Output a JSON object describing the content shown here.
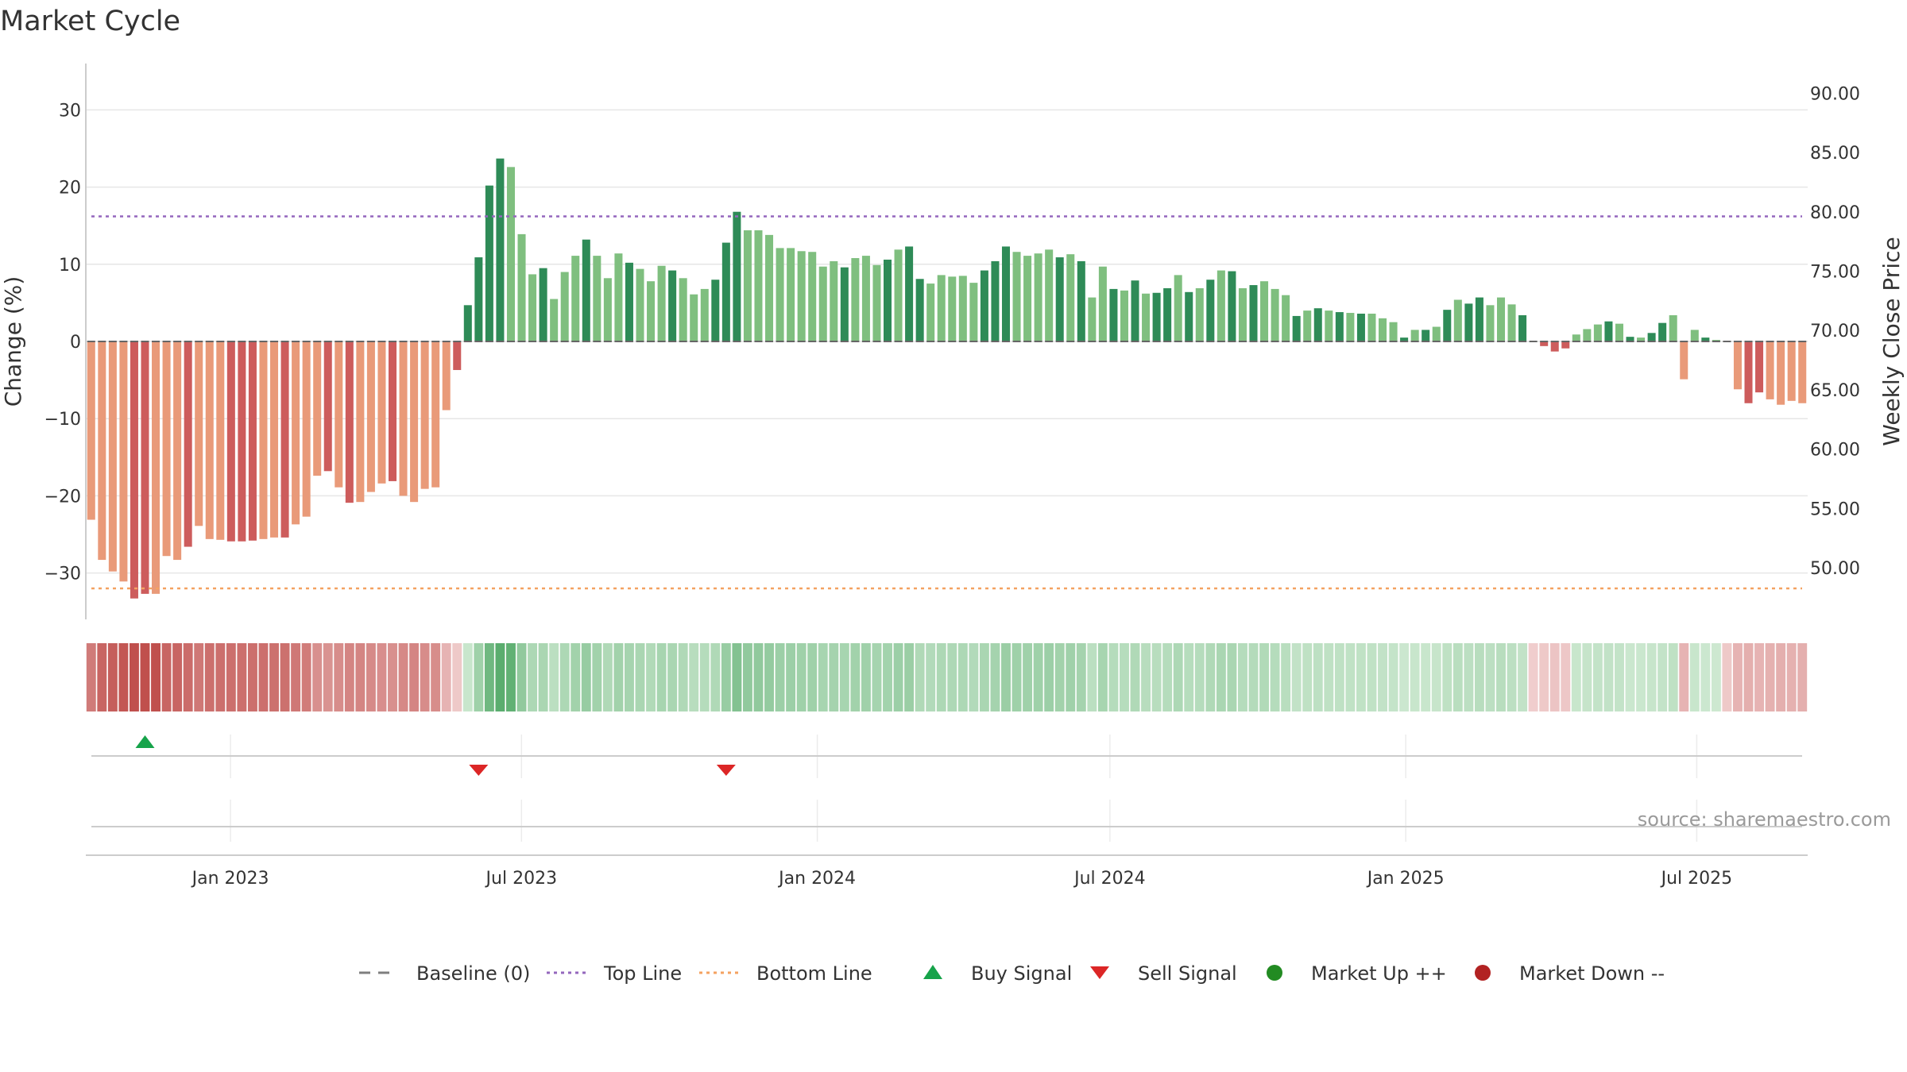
{
  "chart_data": {
    "type": "bar",
    "title": "Market Cycle",
    "ylabel_left": "Change (%)",
    "ylabel_right": "Weekly Close Price",
    "ylim_left": [
      -36,
      36
    ],
    "ylim_right": [
      45.65,
      92.5
    ],
    "yticks_left": [
      30,
      20,
      10,
      0,
      -10,
      -20,
      -30
    ],
    "ytick_labels_left": [
      "30",
      "20",
      "10",
      "0",
      "−10",
      "−20",
      "−30"
    ],
    "yticks_right": [
      90,
      85,
      80,
      75,
      70,
      65,
      60,
      55,
      50
    ],
    "ytick_labels_right": [
      "90.00",
      "85.00",
      "80.00",
      "75.00",
      "70.00",
      "65.00",
      "60.00",
      "55.00",
      "50.00"
    ],
    "x_range": [
      "2022-10-03",
      "2025-09-08"
    ],
    "x_ticks": [
      {
        "date": "2023-01-01",
        "label": "Jan 2023"
      },
      {
        "date": "2023-07-01",
        "label": "Jul 2023"
      },
      {
        "date": "2024-01-01",
        "label": "Jan 2024"
      },
      {
        "date": "2024-07-01",
        "label": "Jul 2024"
      },
      {
        "date": "2025-01-01",
        "label": "Jan 2025"
      },
      {
        "date": "2025-07-01",
        "label": "Jul 2025"
      }
    ],
    "first_week": "2022-10-03",
    "reference_lines": {
      "baseline": 0,
      "top_line": 16.2,
      "bottom_line": -32.0
    },
    "values": [
      -23.1,
      -28.3,
      -29.8,
      -31.1,
      -33.3,
      -32.7,
      -32.7,
      -27.8,
      -28.3,
      -26.6,
      -23.9,
      -25.6,
      -25.7,
      -25.9,
      -25.9,
      -25.8,
      -25.6,
      -25.4,
      -25.4,
      -23.7,
      -22.7,
      -17.4,
      -16.8,
      -18.9,
      -20.9,
      -20.8,
      -19.5,
      -18.4,
      -18.1,
      -20.0,
      -20.8,
      -19.1,
      -18.9,
      -8.9,
      -3.7,
      4.7,
      10.9,
      20.2,
      23.7,
      22.6,
      13.9,
      8.7,
      9.5,
      5.5,
      9.0,
      11.1,
      13.2,
      11.1,
      8.2,
      11.4,
      10.2,
      9.4,
      7.8,
      9.8,
      9.2,
      8.2,
      6.1,
      6.8,
      8.0,
      12.8,
      16.8,
      14.4,
      14.4,
      13.8,
      12.1,
      12.1,
      11.7,
      11.6,
      9.7,
      10.4,
      9.6,
      10.8,
      11.1,
      9.9,
      10.6,
      11.9,
      12.3,
      8.1,
      7.5,
      8.6,
      8.4,
      8.5,
      7.6,
      9.2,
      10.4,
      12.3,
      11.6,
      11.1,
      11.4,
      11.9,
      10.9,
      11.3,
      10.4,
      5.7,
      9.7,
      6.8,
      6.6,
      7.9,
      6.2,
      6.3,
      6.9,
      8.6,
      6.4,
      6.9,
      8.0,
      9.2,
      9.1,
      6.9,
      7.3,
      7.8,
      6.8,
      6.0,
      3.3,
      4.0,
      4.3,
      4.0,
      3.8,
      3.7,
      3.6,
      3.6,
      3.0,
      2.5,
      0.5,
      1.5,
      1.5,
      1.9,
      4.1,
      5.4,
      4.9,
      5.7,
      4.7,
      5.7,
      4.8,
      3.4,
      0.0,
      -0.6,
      -1.3,
      -0.9,
      0.9,
      1.6,
      2.2,
      2.6,
      2.3,
      0.6,
      0.5,
      1.1,
      2.4,
      3.4,
      -4.9,
      1.5,
      0.5,
      0.2,
      0.0,
      -6.2,
      -8.0,
      -6.6,
      -7.5,
      -8.2,
      -7.7,
      -8.0
    ],
    "bar_colors": {
      "dark_red": "#cd5c5c",
      "light_red": "#e99a79",
      "dark_green": "#2e8b57",
      "light_green": "#7fbf7f"
    },
    "bar_shades": "LLLLDDLLLDLLLDDDLLDLLLDLDLLLDLLLLLDDDDDLLLDLLLDLLLDLLLDLLLDDDLLLLLLLLLDLLLDLDDLLLLLDDDLLLLDLDLLDLDLDDLDLDLDLDLLLDLDLDLDLLLDLDLDLDDLLLDLDDDLLLDLDLDDLLLDLDLDD",
    "heat_strip": [
      -0.7,
      -0.85,
      -0.9,
      -0.95,
      -1.0,
      -1.0,
      -1.0,
      -0.85,
      -0.85,
      -0.8,
      -0.72,
      -0.78,
      -0.78,
      -0.78,
      -0.78,
      -0.78,
      -0.78,
      -0.77,
      -0.77,
      -0.72,
      -0.69,
      -0.55,
      -0.53,
      -0.57,
      -0.63,
      -0.63,
      -0.59,
      -0.56,
      -0.55,
      -0.6,
      -0.63,
      -0.58,
      -0.57,
      -0.3,
      -0.15,
      0.2,
      0.5,
      0.85,
      1.0,
      0.95,
      0.6,
      0.4,
      0.42,
      0.3,
      0.4,
      0.48,
      0.56,
      0.48,
      0.38,
      0.48,
      0.45,
      0.42,
      0.37,
      0.44,
      0.42,
      0.38,
      0.32,
      0.34,
      0.38,
      0.55,
      0.7,
      0.6,
      0.6,
      0.58,
      0.52,
      0.52,
      0.5,
      0.5,
      0.44,
      0.46,
      0.44,
      0.48,
      0.49,
      0.45,
      0.47,
      0.52,
      0.53,
      0.38,
      0.36,
      0.4,
      0.39,
      0.4,
      0.36,
      0.42,
      0.46,
      0.53,
      0.5,
      0.49,
      0.5,
      0.52,
      0.48,
      0.49,
      0.46,
      0.3,
      0.44,
      0.34,
      0.33,
      0.38,
      0.32,
      0.32,
      0.34,
      0.4,
      0.33,
      0.34,
      0.38,
      0.42,
      0.42,
      0.34,
      0.35,
      0.37,
      0.34,
      0.31,
      0.25,
      0.27,
      0.28,
      0.27,
      0.27,
      0.26,
      0.26,
      0.26,
      0.25,
      0.23,
      0.18,
      0.2,
      0.2,
      0.21,
      0.27,
      0.31,
      0.29,
      0.32,
      0.29,
      0.32,
      0.29,
      0.25,
      -0.12,
      -0.15,
      -0.18,
      -0.16,
      0.2,
      0.22,
      0.24,
      0.25,
      0.24,
      0.19,
      0.19,
      0.21,
      0.24,
      0.27,
      -0.3,
      0.2,
      0.18,
      0.17,
      -0.15,
      -0.3,
      -0.33,
      -0.3,
      -0.32,
      -0.33,
      -0.32,
      -0.33
    ],
    "buy_signals": [
      "2022-11-07"
    ],
    "sell_signals": [
      "2023-06-12",
      "2023-11-20"
    ],
    "legend": [
      {
        "key": "baseline",
        "label": "Baseline (0)",
        "symbol": "dash",
        "color": "#7f7f7f"
      },
      {
        "key": "top",
        "label": "Top Line",
        "symbol": "dotted",
        "color": "#9467bd"
      },
      {
        "key": "bottom",
        "label": "Bottom Line",
        "symbol": "dotted",
        "color": "#f4a261"
      },
      {
        "key": "buy",
        "label": "Buy Signal",
        "symbol": "triangle-up",
        "color": "#16a34a"
      },
      {
        "key": "sell",
        "label": "Sell Signal",
        "symbol": "triangle-down",
        "color": "#dc2626"
      },
      {
        "key": "up",
        "label": "Market Up ++",
        "symbol": "circle",
        "color": "#228b22"
      },
      {
        "key": "down",
        "label": "Market Down --",
        "symbol": "circle",
        "color": "#b22222"
      }
    ],
    "legend_position": "bottom-center",
    "grid": true,
    "source": "source: sharemaestro.com"
  }
}
